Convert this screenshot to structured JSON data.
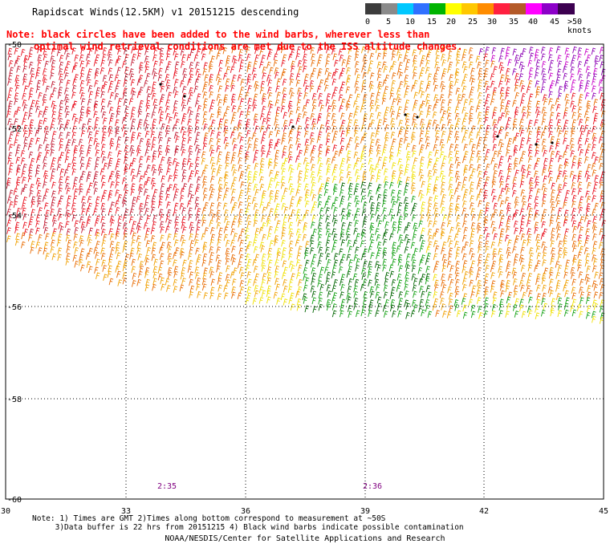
{
  "title": "Rapidscat Winds(12.5KM) v1 20151215 descending",
  "note": {
    "line1": "Note: black circles have been added to the wind barbs, wherever less than",
    "line2": "optimal wind retrieval conditions are met due to the ISS altitude changes."
  },
  "legend": {
    "labels": [
      "0",
      "5",
      "10",
      "15",
      "20",
      "25",
      "30",
      "35",
      "40",
      "45",
      ">50 knots"
    ],
    "colors": [
      "#3c3c3c",
      "#8a8a8a",
      "#00c8ff",
      "#3070ff",
      "#00b400",
      "#ffff00",
      "#ffc800",
      "#ff8c00",
      "#ff2040",
      "#b45a28",
      "#ff00ff",
      "#8c00c8",
      "#3c0050"
    ]
  },
  "axes": {
    "lat_labels": [
      "-50",
      "-52",
      "-54",
      "-56",
      "-58",
      "-60"
    ],
    "lon_labels": [
      "30",
      "33",
      "36",
      "39",
      "42",
      "45"
    ]
  },
  "times": [
    "2:35",
    "2:36"
  ],
  "bottom_note": "Note: 1) Times are GMT 2)Times along bottom correspond to measurement at ~50S\n     3)Data buffer is 22 hrs from 20151215 4) Black wind barbs indicate possible contamination",
  "credit": "NOAA/NESDIS/Center for Satellite Applications and Research",
  "barb_colors": {
    "red": "#e8101e",
    "crimson": "#c01830",
    "orange": "#e86a00",
    "amber": "#f0a000",
    "yellow": "#f0e000",
    "green": "#10a010",
    "darkgreen": "#006400",
    "purple": "#8c00b4",
    "magenta": "#c800c8",
    "black": "#000000"
  }
}
